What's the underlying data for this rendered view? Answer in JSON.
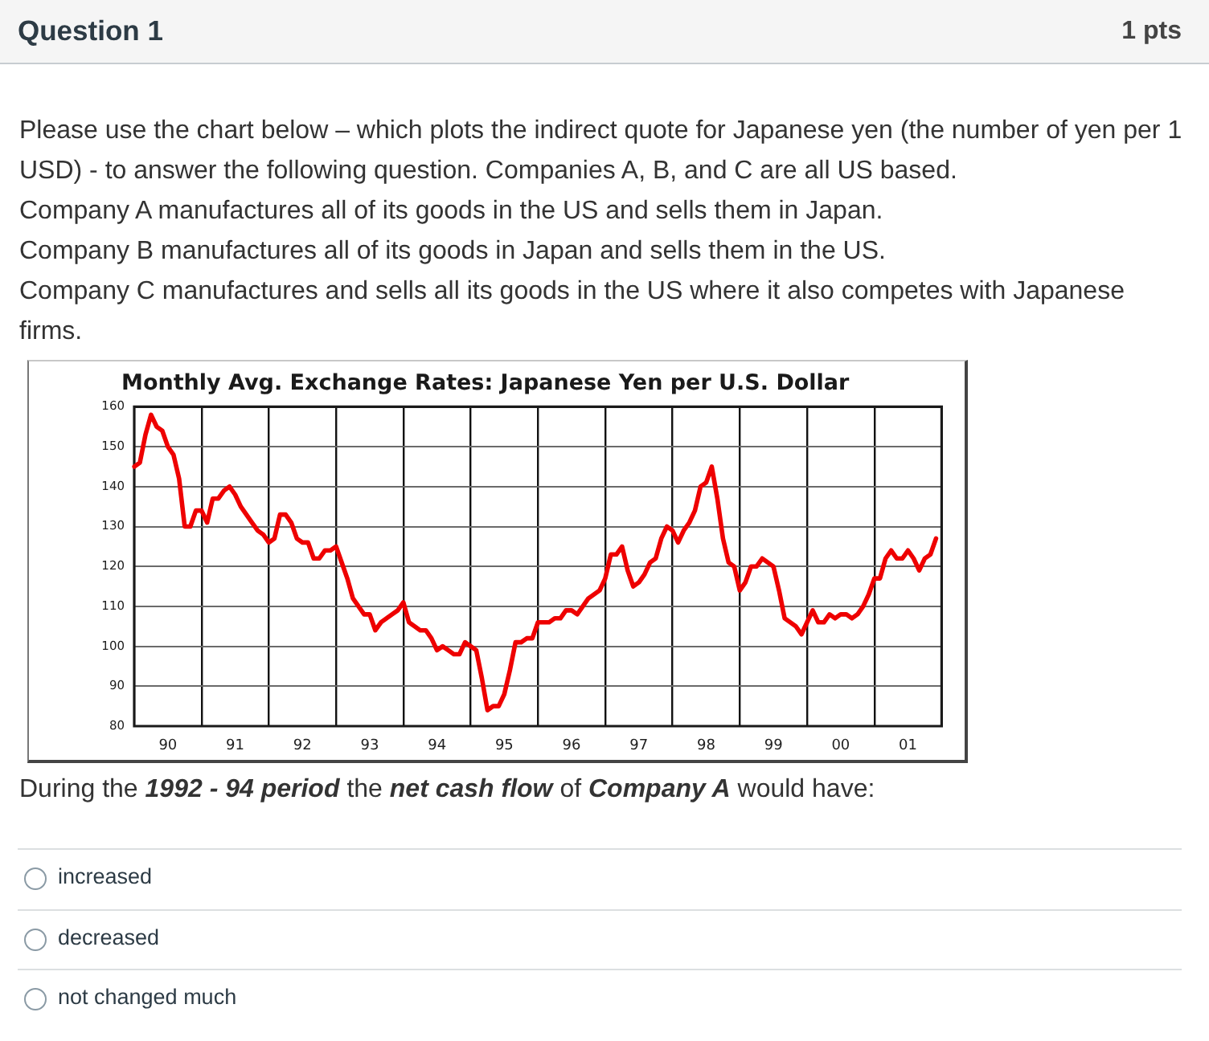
{
  "chart_data": {
    "type": "line",
    "title": "Monthly Avg. Exchange Rates: Japanese Yen per U.S. Dollar",
    "annotations": [
      "Question 1",
      "1 pts",
      "Please use the chart below – which plots the indirect quote for Japanese yen (the number of yen per 1 USD) - to answer the following question. Companies A, B, and C are all US based.",
      "Company A manufactures all of its goods in the US and sells them in Japan.",
      "Company B manufactures all of its goods in Japan and sells them in the US.",
      "Company C manufactures and sells all its goods in the US where it also competes with Japanese firms.",
      "During the",
      "1992 - 94 period",
      "the",
      "net cash flow",
      "of",
      "Company A",
      "would have:",
      "increased",
      "decreased",
      "not changed much"
    ],
    "categories": [
      null,
      null,
      null,
      null,
      null,
      null,
      "90",
      null,
      null,
      null,
      null,
      null,
      null,
      null,
      null,
      null,
      null,
      null,
      "91",
      null,
      null,
      null,
      null,
      null,
      null,
      null,
      null,
      null,
      null,
      null,
      "92",
      null,
      null,
      null,
      null,
      null,
      null,
      null,
      null,
      null,
      null,
      null,
      "93",
      null,
      null,
      null,
      null,
      null,
      null,
      null,
      null,
      null,
      null,
      null,
      "94",
      null,
      null,
      null,
      null,
      null,
      null,
      null,
      null,
      null,
      null,
      null,
      "95",
      null,
      null,
      null,
      null,
      null,
      null,
      null,
      null,
      null,
      null,
      null,
      "96",
      null,
      null,
      null,
      null,
      null,
      null,
      null,
      null,
      null,
      null,
      null,
      "97",
      null,
      null,
      null,
      null,
      null,
      null,
      null,
      null,
      null,
      null,
      null,
      "98",
      null,
      null,
      null,
      null,
      null,
      null,
      null,
      null,
      null,
      null,
      null,
      "99",
      null,
      null,
      null,
      null,
      null,
      null,
      null,
      null,
      null,
      null,
      null,
      "00",
      null,
      null,
      null,
      null,
      null,
      null,
      null,
      null,
      null,
      null,
      null,
      "01",
      null,
      null,
      null,
      null,
      null
    ],
    "values": [
      145,
      146,
      153,
      158,
      155,
      154,
      150,
      148,
      142,
      130,
      130,
      134,
      134,
      131,
      137,
      137,
      139,
      140,
      138,
      135,
      133,
      131,
      129,
      128,
      126,
      127,
      133,
      133,
      131,
      127,
      126,
      126,
      122,
      122,
      124,
      124,
      125,
      121,
      117,
      112,
      110,
      108,
      108,
      104,
      106,
      107,
      108,
      109,
      111,
      106,
      105,
      104,
      104,
      102,
      99,
      100,
      99,
      98,
      98,
      101,
      100,
      99,
      92,
      84,
      85,
      85,
      88,
      94,
      101,
      101,
      102,
      102,
      106,
      106,
      106,
      107,
      107,
      109,
      109,
      108,
      110,
      112,
      113,
      114,
      117,
      123,
      123,
      125,
      119,
      115,
      116,
      118,
      121,
      122,
      127,
      130,
      129,
      126,
      129,
      131,
      134,
      140,
      141,
      145,
      137,
      127,
      121,
      120,
      114,
      116,
      120,
      120,
      122,
      121,
      120,
      114,
      107,
      106,
      105,
      103,
      106,
      109,
      106,
      106,
      108,
      107,
      108,
      108,
      107,
      108,
      110,
      113,
      117,
      117,
      122,
      124,
      122,
      122,
      124,
      122,
      119,
      122,
      123,
      127
    ],
    "color": "#ee0000",
    "ylim": [
      80,
      160
    ],
    "yticks": [
      80,
      90,
      100,
      110,
      120,
      130,
      140,
      150,
      160
    ],
    "grid": true,
    "legend": false,
    "marker": "none",
    "line_style": "solid"
  }
}
